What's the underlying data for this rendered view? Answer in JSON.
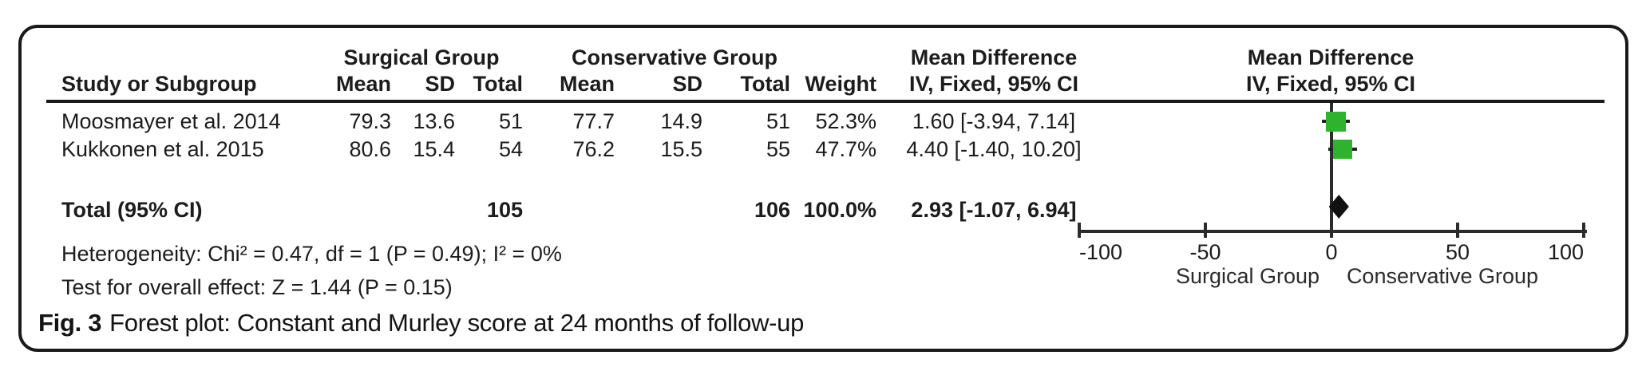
{
  "figure": {
    "caption_label": "Fig. 3",
    "caption_text": "Forest plot: Constant and Murley score at 24 months of follow-up"
  },
  "table": {
    "group_headers": {
      "surgical": "Surgical Group",
      "conservative": "Conservative Group",
      "mean_difference": "Mean Difference",
      "plot_mean_difference": "Mean Difference"
    },
    "column_headers": {
      "study": "Study or Subgroup",
      "mean1": "Mean",
      "sd1": "SD",
      "total1": "Total",
      "mean2": "Mean",
      "sd2": "SD",
      "total2": "Total",
      "weight": "Weight",
      "ci": "IV, Fixed, 95% CI",
      "plot_ci": "IV, Fixed, 95% CI"
    },
    "rows": [
      {
        "study": "Moosmayer et al. 2014",
        "mean1": "79.3",
        "sd1": "13.6",
        "total1": "51",
        "mean2": "77.7",
        "sd2": "14.9",
        "total2": "51",
        "weight": "52.3%",
        "ci": "1.60 [-3.94, 7.14]"
      },
      {
        "study": "Kukkonen et al. 2015",
        "mean1": "80.6",
        "sd1": "15.4",
        "total1": "54",
        "mean2": "76.2",
        "sd2": "15.5",
        "total2": "55",
        "weight": "47.7%",
        "ci": "4.40 [-1.40, 10.20]"
      }
    ],
    "total_row": {
      "label": "Total (95% CI)",
      "total1": "105",
      "total2": "106",
      "weight": "100.0%",
      "ci": "2.93 [-1.07, 6.94]"
    },
    "footer": {
      "heterogeneity": "Heterogeneity: Chi² = 0.47, df = 1 (P = 0.49); I² = 0%",
      "overall_effect": "Test for overall effect: Z = 1.44 (P = 0.15)"
    }
  },
  "chart_data": {
    "type": "scatter",
    "subtype": "forest-plot",
    "title": "Mean Difference IV, Fixed, 95% CI",
    "axis": {
      "min": -100,
      "max": 100,
      "ticks": [
        -100,
        -50,
        0,
        50,
        100
      ],
      "left_label": "Surgical Group",
      "right_label": "Conservative Group"
    },
    "studies": [
      {
        "name": "Moosmayer et al. 2014",
        "md": 1.6,
        "ci_low": -3.94,
        "ci_high": 7.14,
        "weight_pct": 52.3
      },
      {
        "name": "Kukkonen et al. 2015",
        "md": 4.4,
        "ci_low": -1.4,
        "ci_high": 10.2,
        "weight_pct": 47.7
      }
    ],
    "total": {
      "name": "Total (95% CI)",
      "md": 2.93,
      "ci_low": -1.07,
      "ci_high": 6.94
    },
    "marker_color": "#2db32d",
    "line_color": "#2b2b2b"
  }
}
